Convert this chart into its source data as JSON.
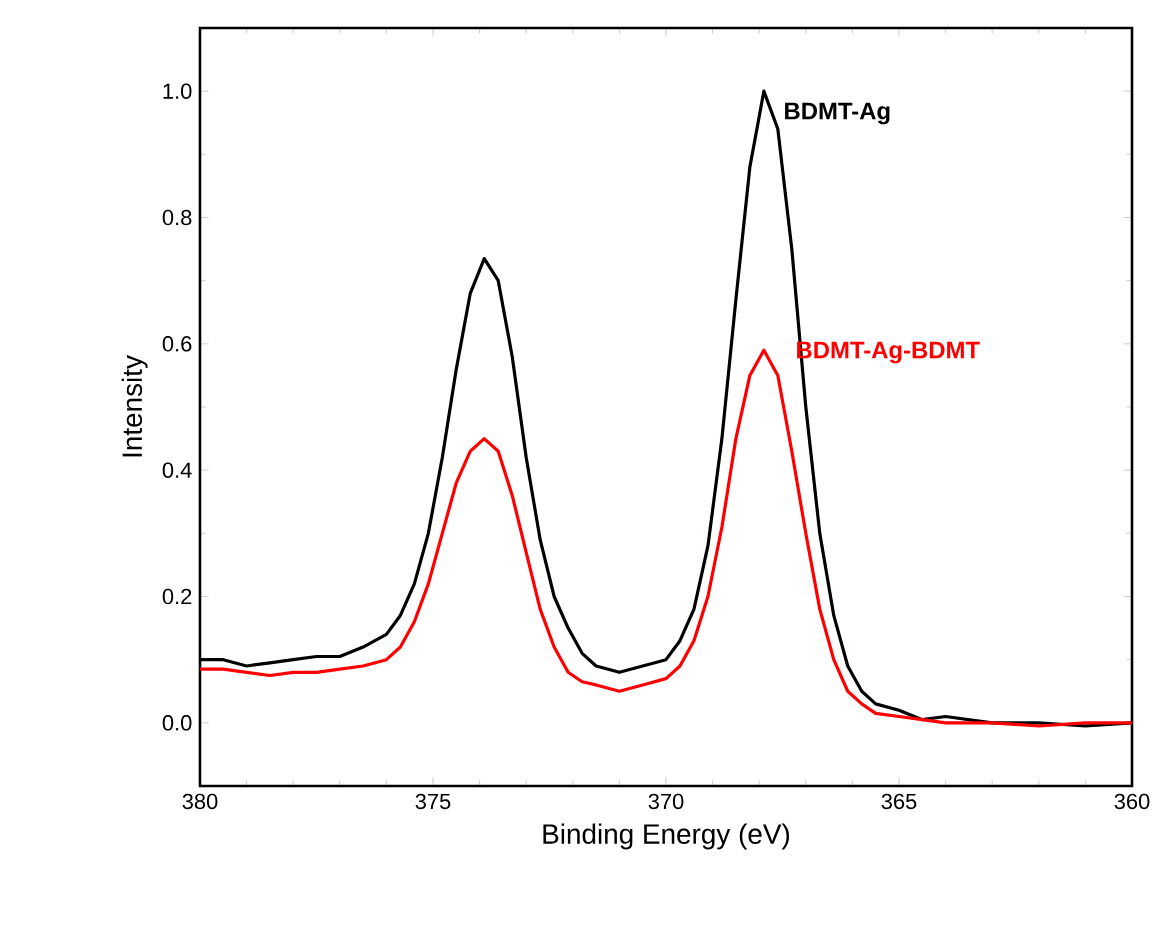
{
  "chart_data": {
    "type": "line",
    "xlabel": "Binding Energy (eV)",
    "ylabel": "Intensity",
    "x": [
      380,
      379.5,
      379,
      378.5,
      378,
      377.5,
      377,
      376.5,
      376,
      375.7,
      375.4,
      375.1,
      374.8,
      374.5,
      374.2,
      373.9,
      373.6,
      373.3,
      373,
      372.7,
      372.4,
      372.1,
      371.8,
      371.5,
      371,
      370.5,
      370,
      369.7,
      369.4,
      369.1,
      368.8,
      368.5,
      368.2,
      367.9,
      367.6,
      367.3,
      367,
      366.7,
      366.4,
      366.1,
      365.8,
      365.5,
      365,
      364.5,
      364,
      363,
      362,
      361,
      360
    ],
    "series": [
      {
        "name": "BDMT-Ag",
        "color": "#000000",
        "values": [
          0.1,
          0.1,
          0.09,
          0.095,
          0.1,
          0.105,
          0.105,
          0.12,
          0.14,
          0.17,
          0.22,
          0.3,
          0.42,
          0.56,
          0.68,
          0.735,
          0.7,
          0.58,
          0.42,
          0.29,
          0.2,
          0.15,
          0.11,
          0.09,
          0.08,
          0.09,
          0.1,
          0.13,
          0.18,
          0.28,
          0.45,
          0.67,
          0.88,
          1.0,
          0.94,
          0.75,
          0.5,
          0.3,
          0.17,
          0.09,
          0.05,
          0.03,
          0.02,
          0.005,
          0.01,
          0.0,
          0.0,
          -0.005,
          0.0
        ]
      },
      {
        "name": "BDMT-Ag-BDMT",
        "color": "#ff0000",
        "values": [
          0.085,
          0.085,
          0.08,
          0.075,
          0.08,
          0.08,
          0.085,
          0.09,
          0.1,
          0.12,
          0.16,
          0.22,
          0.3,
          0.38,
          0.43,
          0.45,
          0.43,
          0.36,
          0.27,
          0.18,
          0.12,
          0.08,
          0.065,
          0.06,
          0.05,
          0.06,
          0.07,
          0.09,
          0.13,
          0.2,
          0.31,
          0.45,
          0.55,
          0.59,
          0.55,
          0.43,
          0.3,
          0.18,
          0.1,
          0.05,
          0.03,
          0.015,
          0.01,
          0.005,
          0.0,
          0.0,
          -0.005,
          0.0,
          0.0
        ]
      }
    ],
    "xlim": [
      380,
      360
    ],
    "xticks": [
      380,
      375,
      370,
      365,
      360
    ],
    "ylim": [
      -0.1,
      1.1
    ],
    "yticks": [
      {
        "value": 0.0,
        "label": "0.0"
      },
      {
        "value": 0.2,
        "label": "0.2"
      },
      {
        "value": 0.4,
        "label": "0.4"
      },
      {
        "value": 0.6,
        "label": "0.6"
      },
      {
        "value": 0.8,
        "label": "0.8"
      },
      {
        "value": 1.0,
        "label": "1.0"
      }
    ],
    "grid": false,
    "legend": false,
    "marker": "none",
    "line_style": "solid"
  }
}
